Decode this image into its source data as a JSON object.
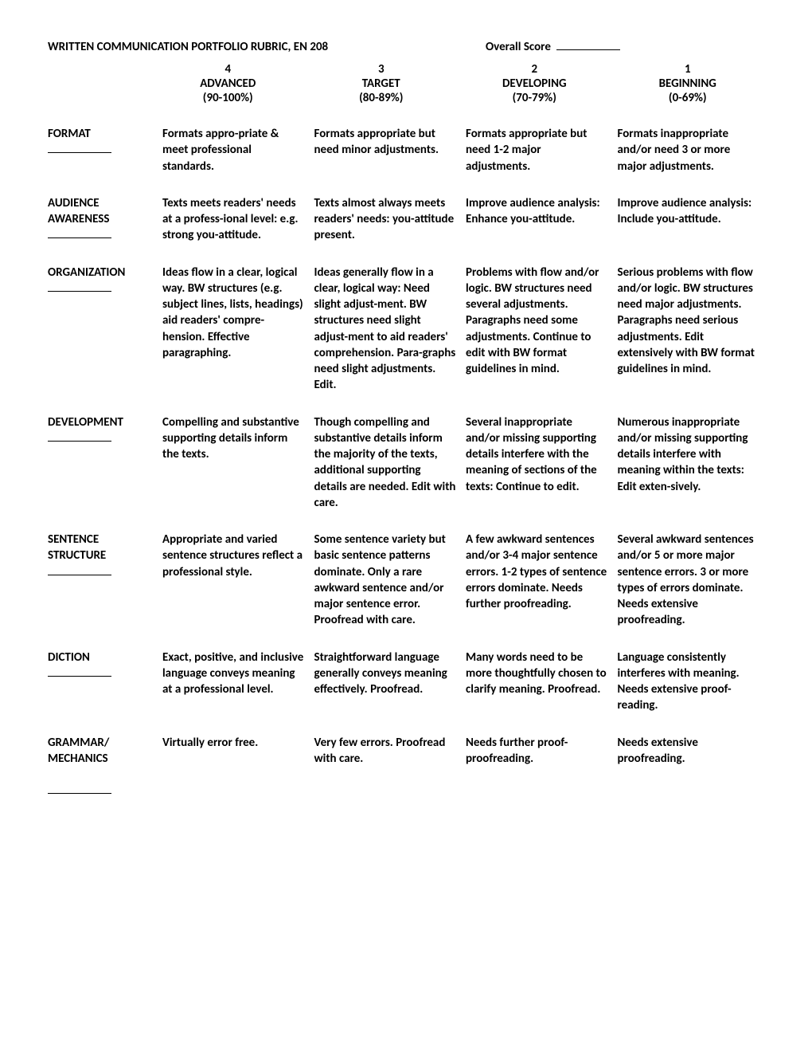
{
  "header": {
    "title": "WRITTEN COMMUNICATION PORTFOLIO RUBRIC, EN 208",
    "score_label": "Overall Score"
  },
  "levels": [
    {
      "num": "4",
      "name": "ADVANCED",
      "range": "(90-100%)"
    },
    {
      "num": "3",
      "name": "TARGET",
      "range": "(80-89%)"
    },
    {
      "num": "2",
      "name": "DEVELOPING",
      "range": "(70-79%)"
    },
    {
      "num": "1",
      "name": "BEGINNING",
      "range": "(0-69%)"
    }
  ],
  "rows": [
    {
      "label": "FORMAT",
      "cells": [
        "Formats appro-priate & meet professional standards.",
        "Formats appropriate but need minor adjustments.",
        "Formats appropriate but need 1-2 major adjustments.",
        "Formats inappropriate and/or need 3 or more major adjustments."
      ]
    },
    {
      "label": "AUDIENCE AWARENESS",
      "cells": [
        "Texts meets readers' needs at a profess-ional level: e.g. strong you-attitude.",
        "Texts almost always meets readers' needs: you-attitude present.",
        "Improve audience analysis: Enhance you-attitude.",
        "Improve audience analysis: Include you-attitude."
      ]
    },
    {
      "label": "ORGANIZATION",
      "cells": [
        "Ideas flow in a clear, logical way. BW structures (e.g. subject lines, lists, headings) aid readers' compre-hension. Effective paragraphing.",
        "Ideas generally flow in a clear, logical way: Need slight adjust-ment. BW structures need slight adjust-ment to aid readers' comprehension. Para-graphs need slight adjustments. Edit.",
        "Problems with flow and/or logic. BW structures need several adjustments. Paragraphs need some adjustments. Continue to edit with BW format guidelines in mind.",
        "Serious problems with flow and/or logic. BW structures need major adjustments. Paragraphs need serious adjustments. Edit extensively with BW format guidelines in mind."
      ]
    },
    {
      "label": "DEVELOPMENT",
      "cells": [
        "Compelling and substantive supporting details inform the texts.",
        "Though compelling and substantive details inform the majority of the texts, additional supporting details are needed. Edit with care.",
        "Several inappropriate and/or missing supporting details interfere with the meaning of sections of the texts: Continue to edit.",
        "Numerous inappropriate and/or missing supporting details interfere with meaning within the texts: Edit exten-sively."
      ]
    },
    {
      "label": "SENTENCE STRUCTURE",
      "cells": [
        "Appropriate and varied sentence structures reflect a professional style.",
        "Some sentence variety but basic sentence patterns dominate. Only a rare awkward sentence and/or major sentence error. Proofread with care.",
        "A few awkward sentences and/or 3-4 major sentence errors. 1-2 types of sentence errors dominate. Needs further proofreading.",
        "Several awkward sentences and/or 5 or more major sentence errors. 3 or more types of errors dominate. Needs extensive proofreading."
      ]
    },
    {
      "label": "DICTION",
      "cells": [
        "Exact, positive, and inclusive language conveys meaning at a professional level.",
        "Straightforward language generally conveys meaning effectively. Proofread.",
        "Many words need to be more thoughtfully chosen to clarify meaning. Proofread.",
        "Language consistently interferes with meaning. Needs extensive proof-reading."
      ]
    },
    {
      "label": "GRAMMAR/ MECHANICS",
      "cells": [
        "Virtually error free.",
        "Very few errors. Proofread with care.",
        "Needs further proof-proofreading.",
        "Needs extensive proofreading."
      ]
    }
  ]
}
